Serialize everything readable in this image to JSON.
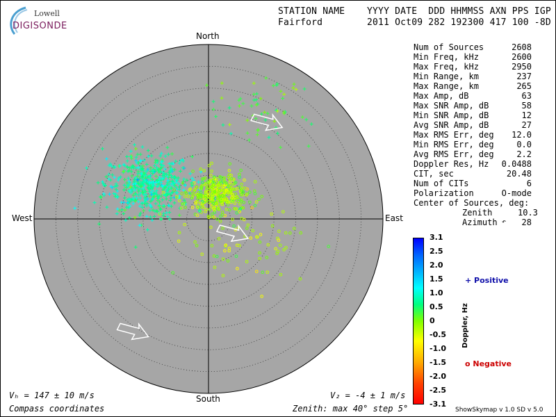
{
  "logo": {
    "top": "Lowell",
    "main": "DIGISONDE"
  },
  "header": {
    "row1_name": "STATION NAME",
    "row1_cols": "YYYY DATE  DDD HHMMSS AXN PPS IGP",
    "row2_name": "Fairford",
    "row2_vals": "2011 Oct09 282 192300 417 100 -8D"
  },
  "stats": [
    {
      "label": "Num of Sources",
      "value": "2608"
    },
    {
      "label": "Min Freq, kHz",
      "value": "2600"
    },
    {
      "label": "Max Freq, kHz",
      "value": "2950"
    },
    {
      "label": "Min Range, km",
      "value": "237"
    },
    {
      "label": "Max Range, km",
      "value": "265"
    },
    {
      "label": "Max Amp, dB",
      "value": "63"
    },
    {
      "label": "Max SNR Amp, dB",
      "value": "58"
    },
    {
      "label": "Min SNR Amp, dB",
      "value": "12"
    },
    {
      "label": "Avg SNR Amp, dB",
      "value": "27"
    },
    {
      "label": "Max RMS Err, deg",
      "value": "12.0"
    },
    {
      "label": "Min RMS Err, deg",
      "value": "0.0"
    },
    {
      "label": "Avg RMS Err, deg",
      "value": "2.2"
    },
    {
      "label": "Doppler Res, Hz",
      "value": "0.0488"
    },
    {
      "label": "CIT, sec",
      "value": "20.48"
    },
    {
      "label": "Num of CITs",
      "value": "6"
    },
    {
      "label": "Polarization",
      "value": "O-mode"
    }
  ],
  "center": {
    "title": "Center of Sources, deg:",
    "zenith_label": "Zenith",
    "zenith_value": "10.3",
    "azimuth_label": "Azimuth",
    "azimuth_value": "28"
  },
  "directions": {
    "north": "North",
    "south": "South",
    "east": "East",
    "west": "West"
  },
  "velocity": {
    "vh": "Vₕ = 147 ± 10 m/s",
    "vz": "V₂ = -4 ± 1 m/s"
  },
  "footer": {
    "coords": "Compass coordinates",
    "zenith": "Zenith: max 40°  step 5°",
    "credits": "ShowSkymap v 1.0   SD v 5.0"
  },
  "colorbar": {
    "label": "Doppler, Hz",
    "ticks": [
      "3.1",
      "2.5",
      "2.0",
      "1.5",
      "1.0",
      "0.5",
      "0",
      "-0.5",
      "-1.0",
      "-1.5",
      "-2.0",
      "-2.5",
      "-3.1"
    ],
    "positive_label": "+ Positive",
    "negative_label": "o Negative"
  },
  "chart_data": {
    "type": "scatter",
    "coordinate_system": "polar-compass",
    "zenith_max_deg": 40,
    "zenith_step_deg": 5,
    "background": "#a6a6a6",
    "clusters": [
      {
        "name": "Positive",
        "marker": "+",
        "az_center_deg": 300,
        "zenith_center_deg": 16,
        "spread_deg": 4.5,
        "count": 520,
        "doppler_hz": 1.0
      },
      {
        "name": "Positive",
        "marker": "+",
        "az_center_deg": 25,
        "zenith_center_deg": 28,
        "spread_deg": 5,
        "count": 60,
        "doppler_hz": 0.3
      },
      {
        "name": "Negative",
        "marker": "o",
        "az_center_deg": 20,
        "zenith_center_deg": 6,
        "spread_deg": 3,
        "count": 360,
        "doppler_hz": -0.2
      },
      {
        "name": "Negative",
        "marker": "o",
        "az_center_deg": 120,
        "zenith_center_deg": 10,
        "spread_deg": 6,
        "count": 80,
        "doppler_hz": -0.3
      }
    ],
    "motion_arrows": [
      {
        "az_deg": 30,
        "zenith_deg": 27,
        "direction": "east-southeast"
      },
      {
        "az_deg": 110,
        "zenith_deg": 6,
        "direction": "east-southeast"
      },
      {
        "az_deg": 215,
        "zenith_deg": 30,
        "direction": "east-southeast"
      }
    ]
  }
}
